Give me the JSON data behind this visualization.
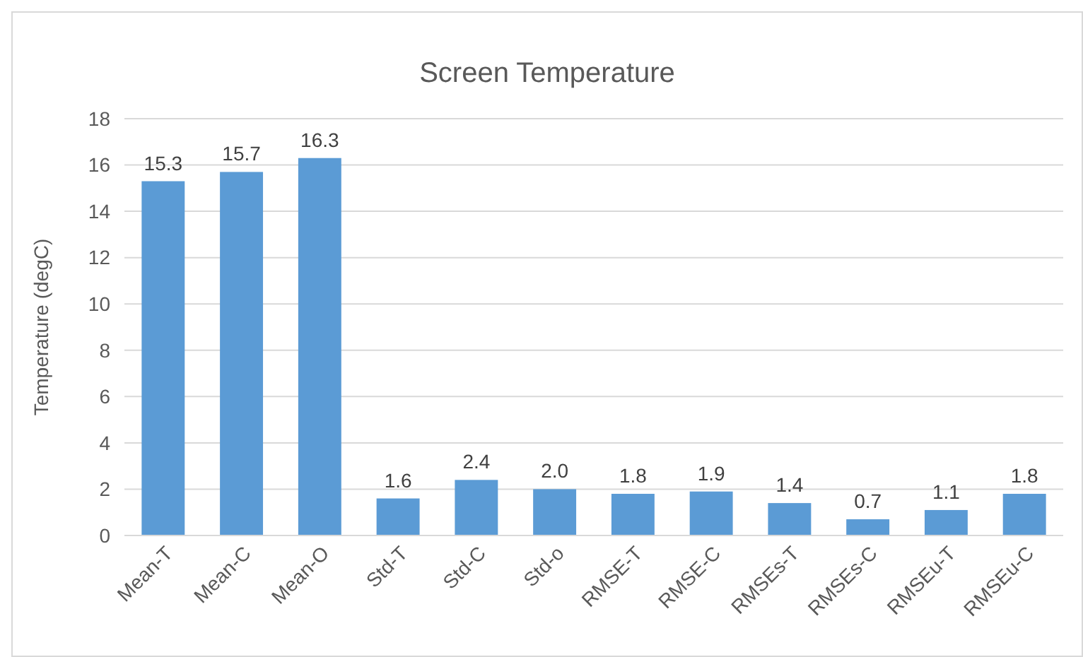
{
  "chart_data": {
    "type": "bar",
    "title": "Screen Temperature",
    "ylabel": "Temperature (degC)",
    "categories": [
      "Mean-T",
      "Mean-C",
      "Mean-O",
      "Std-T",
      "Std-C",
      "Std-o",
      "RMSE-T",
      "RMSE-C",
      "RMSEs-T",
      "RMSEs-C",
      "RMSEu-T",
      "RMSEu-C"
    ],
    "values": [
      15.3,
      15.7,
      16.3,
      1.6,
      2.4,
      2.0,
      1.8,
      1.9,
      1.4,
      0.7,
      1.1,
      1.8
    ],
    "value_labels": [
      "15.3",
      "15.7",
      "16.3",
      "1.6",
      "2.4",
      "2.0",
      "1.8",
      "1.9",
      "1.4",
      "0.7",
      "1.1",
      "1.8"
    ],
    "color": "#5b9bd5",
    "ylim": [
      0,
      18
    ],
    "yticks": [
      0,
      2,
      4,
      6,
      8,
      10,
      12,
      14,
      16,
      18
    ],
    "grid": "y"
  }
}
